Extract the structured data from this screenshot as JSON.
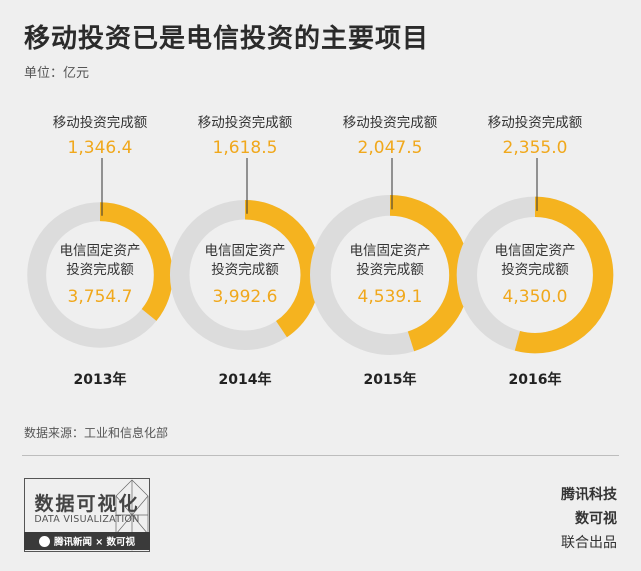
{
  "title": "移动投资已是电信投资的主要项目",
  "unit": "单位：亿元",
  "source": "数据来源：工业和信息化部",
  "chart_data": {
    "type": "pie",
    "years": [
      "2013年",
      "2014年",
      "2015年",
      "2016年"
    ],
    "series": [
      {
        "name": "移动投资完成额",
        "values": [
          1346.4,
          1618.5,
          2047.5,
          2355.0
        ],
        "labels": [
          "1,346.4",
          "1,618.5",
          "2,047.5",
          "2,355.0"
        ]
      },
      {
        "name": "电信固定资产投资完成额",
        "values": [
          3754.7,
          3992.6,
          4539.1,
          4350.0
        ],
        "labels": [
          "3,754.7",
          "3,992.6",
          "4,539.1",
          "4,350.0"
        ]
      }
    ],
    "center_label_line1": "电信固定资产",
    "center_label_line2": "投资完成额",
    "colors": {
      "mobile": "#f5b31f",
      "total": "#dcdcdc",
      "value_text": "#f0a81c"
    }
  },
  "branding": {
    "dv_cn": "数据可视化",
    "dv_en": "DATA VISUALIZATION",
    "dv_bar": "腾讯新闻 × 数可视",
    "credit_1": "腾讯科技",
    "credit_2": "数可视",
    "credit_3": "联合出品"
  }
}
